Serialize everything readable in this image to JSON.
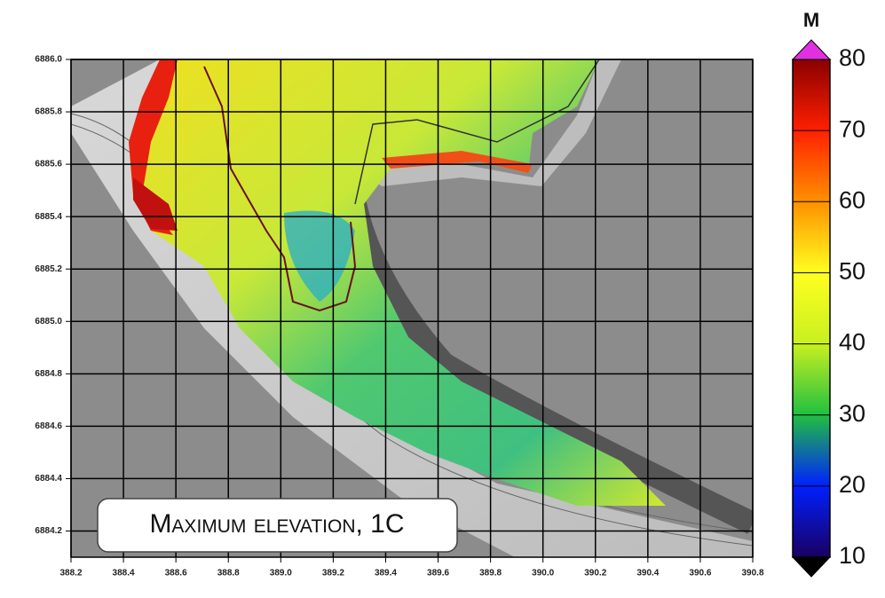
{
  "map": {
    "xlim": [
      388.2,
      390.8
    ],
    "xticks": [
      388.2,
      388.4,
      388.6,
      388.8,
      {
        "value": 389,
        "label": "389.0"
      },
      389.2,
      389.4,
      389.6,
      389.8,
      {
        "value": 390,
        "label": "390.0"
      },
      390.2,
      390.4,
      390.6,
      390.8
    ],
    "ylim": [
      6884.1,
      6886.0
    ],
    "yticks": [
      {
        "value": 6886,
        "label": "6886.0"
      },
      6885.8,
      6885.6,
      6885.4,
      6885.2,
      {
        "value": 6885,
        "label": "6885.0"
      },
      6884.8,
      6884.6,
      6884.4,
      6884.2
    ],
    "grid": true,
    "annotation": "Maximum elevation, 1C"
  },
  "colorbar": {
    "unit": "M",
    "lim": [
      10,
      80
    ],
    "ticks": [
      80,
      70,
      60,
      50,
      40,
      30,
      20,
      10
    ],
    "colors": [
      "#1a0060",
      "#0020ff",
      "#20c040",
      "#c8f020",
      "#ffff20",
      "#ff9000",
      "#ff2000",
      "#8a0000"
    ],
    "over_color": "#e030e0",
    "under_color": "#000000"
  }
}
